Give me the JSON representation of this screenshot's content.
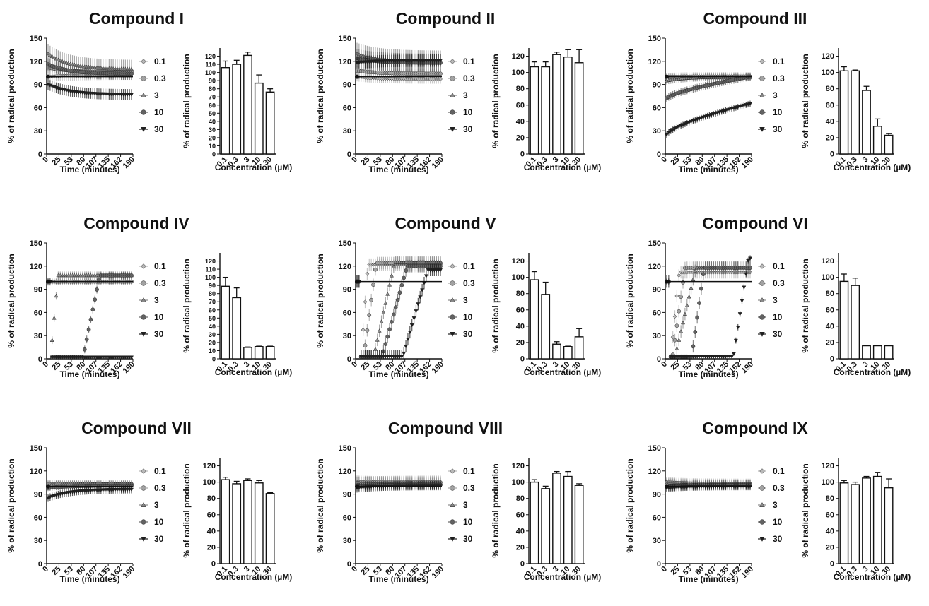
{
  "figure": {
    "time_xlabel": "Time (minutes)",
    "time_ylabel": "% of radical production",
    "bar_xlabel": "Concentration (µM)",
    "bar_ylabel": "% of radical production",
    "series_colors": [
      "#b8b8b8",
      "#a2a2a2",
      "#8a8a8a",
      "#626262",
      "#1e1e1e"
    ],
    "markers": [
      "diamond",
      "circle",
      "triangle",
      "circle",
      "triangle-down"
    ]
  },
  "chart_data": [
    {
      "type": "line",
      "title": "Compound I",
      "x_ticks": [
        "0",
        "25",
        "53",
        "80",
        "107",
        "135",
        "162",
        "190"
      ],
      "y_ticks": [
        "0",
        "30",
        "60",
        "90",
        "120",
        "150"
      ],
      "ylim": [
        0,
        150
      ],
      "legend": [
        "0.1",
        "0.3",
        "3",
        "10",
        "30"
      ],
      "series": [
        {
          "name": "0.1",
          "start": 100,
          "end": 103,
          "err": 7
        },
        {
          "name": "0.3",
          "start": 112,
          "end": 106,
          "err": 8
        },
        {
          "name": "3",
          "start": 130,
          "end": 110,
          "err": 12
        },
        {
          "name": "10",
          "start": 116,
          "end": 104,
          "err": 8
        },
        {
          "name": "30",
          "start": 90,
          "end": 77,
          "err": 7
        }
      ],
      "bar": {
        "type": "bar",
        "categories": [
          "0.1",
          "0.3",
          "3",
          "10",
          "30"
        ],
        "values": [
          106,
          110,
          121,
          87,
          76
        ],
        "errors": [
          8,
          5,
          4,
          10,
          4
        ],
        "y_ticks": [
          "0",
          "10",
          "20",
          "30",
          "40",
          "50",
          "60",
          "70",
          "80",
          "90",
          "100",
          "110",
          "120"
        ],
        "ylim": [
          0,
          130
        ]
      }
    },
    {
      "type": "line",
      "title": "Compound II",
      "x_ticks": [
        "0",
        "25",
        "53",
        "80",
        "107",
        "135",
        "162",
        "190"
      ],
      "y_ticks": [
        "0",
        "30",
        "60",
        "90",
        "120",
        "150"
      ],
      "ylim": [
        0,
        150
      ],
      "legend": [
        "0.1",
        "0.3",
        "3",
        "10",
        "30"
      ],
      "series": [
        {
          "name": "0.1",
          "start": 100,
          "end": 97,
          "err": 6
        },
        {
          "name": "0.3",
          "start": 108,
          "end": 104,
          "err": 6
        },
        {
          "name": "3",
          "start": 130,
          "end": 120,
          "err": 14
        },
        {
          "name": "10",
          "start": 124,
          "end": 118,
          "err": 12
        },
        {
          "name": "30",
          "start": 118,
          "end": 121,
          "err": 8
        }
      ],
      "bar": {
        "type": "bar",
        "categories": [
          "0.1",
          "0.3",
          "3",
          "10",
          "30"
        ],
        "values": [
          107,
          107,
          122,
          119,
          112
        ],
        "errors": [
          6,
          6,
          3,
          9,
          16
        ],
        "y_ticks": [
          "0",
          "20",
          "40",
          "60",
          "80",
          "100",
          "120"
        ],
        "ylim": [
          0,
          130
        ]
      }
    },
    {
      "type": "line",
      "title": "Compound III",
      "x_ticks": [
        "0",
        "25",
        "53",
        "80",
        "107",
        "135",
        "162",
        "190"
      ],
      "y_ticks": [
        "0",
        "30",
        "60",
        "90",
        "120",
        "150"
      ],
      "ylim": [
        0,
        150
      ],
      "legend": [
        "0.1",
        "0.3",
        "3",
        "10",
        "30"
      ],
      "series": [
        {
          "name": "0.1",
          "start": 100,
          "end": 101,
          "err": 5
        },
        {
          "name": "0.3",
          "start": 100,
          "end": 99,
          "err": 4
        },
        {
          "name": "3",
          "start": 95,
          "end": 100,
          "err": 5
        },
        {
          "name": "10",
          "start": 72,
          "end": 100,
          "err": 5
        },
        {
          "name": "30",
          "start": 25,
          "end": 65,
          "err": 4
        }
      ],
      "bar": {
        "type": "bar",
        "categories": [
          "0.1",
          "0.3",
          "3",
          "10",
          "30"
        ],
        "values": [
          102,
          102,
          78,
          34,
          23
        ],
        "errors": [
          5,
          1,
          5,
          9,
          2
        ],
        "y_ticks": [
          "0",
          "20",
          "40",
          "60",
          "80",
          "100",
          "120"
        ],
        "ylim": [
          0,
          130
        ]
      }
    },
    {
      "type": "line",
      "title": "Compound IV",
      "x_ticks": [
        "0",
        "25",
        "53",
        "80",
        "107",
        "135",
        "162",
        "190"
      ],
      "y_ticks": [
        "0",
        "30",
        "60",
        "90",
        "120",
        "150"
      ],
      "ylim": [
        0,
        150
      ],
      "legend": [
        "0.1",
        "0.3",
        "3",
        "10",
        "30"
      ],
      "series": [
        {
          "name": "0.1",
          "start": 100,
          "end": 100,
          "err": 4
        },
        {
          "name": "0.3",
          "start": 100,
          "end": 100,
          "err": 4
        },
        {
          "name": "3",
          "start": 100,
          "end": 108,
          "err": 5
        },
        {
          "name": "10",
          "start": 100,
          "end": 108,
          "err": 5
        },
        {
          "name": "30",
          "start": 100,
          "end": 2,
          "err": 1
        }
      ],
      "bar": {
        "type": "bar",
        "categories": [
          "0.1",
          "0.3",
          "3",
          "10",
          "30"
        ],
        "values": [
          89,
          75,
          14,
          15,
          15
        ],
        "errors": [
          11,
          12,
          0.5,
          0.5,
          0.5
        ],
        "y_ticks": [
          "0",
          "10",
          "20",
          "30",
          "40",
          "50",
          "60",
          "70",
          "80",
          "90",
          "100",
          "110",
          "120"
        ],
        "ylim": [
          0,
          130
        ]
      }
    },
    {
      "type": "line",
      "title": "Compound V",
      "x_ticks": [
        "0",
        "25",
        "53",
        "80",
        "107",
        "135",
        "162",
        "190"
      ],
      "y_ticks": [
        "0",
        "30",
        "60",
        "90",
        "120",
        "150"
      ],
      "ylim": [
        0,
        150
      ],
      "legend": [
        "0.1",
        "0.3",
        "3",
        "10",
        "30"
      ],
      "series": [
        {
          "name": "0.1",
          "start": 100,
          "end": 122,
          "err": 8
        },
        {
          "name": "0.3",
          "start": 100,
          "end": 124,
          "err": 8
        },
        {
          "name": "3",
          "start": 100,
          "end": 125,
          "err": 8
        },
        {
          "name": "10",
          "start": 100,
          "end": 120,
          "err": 8
        },
        {
          "name": "30",
          "start": 100,
          "end": 115,
          "err": 8
        }
      ],
      "bar": {
        "type": "bar",
        "categories": [
          "0.1",
          "0.3",
          "3",
          "10",
          "30"
        ],
        "values": [
          97,
          79,
          18,
          15,
          27
        ],
        "errors": [
          10,
          15,
          3,
          0.5,
          10
        ],
        "y_ticks": [
          "0",
          "20",
          "40",
          "60",
          "80",
          "100",
          "120"
        ],
        "ylim": [
          0,
          130
        ]
      }
    },
    {
      "type": "line",
      "title": "Compound VI",
      "x_ticks": [
        "0",
        "25",
        "53",
        "80",
        "107",
        "135",
        "162",
        "190"
      ],
      "y_ticks": [
        "0",
        "30",
        "60",
        "90",
        "120",
        "150"
      ],
      "ylim": [
        0,
        150
      ],
      "legend": [
        "0.1",
        "0.3",
        "3",
        "10",
        "30"
      ],
      "series": [
        {
          "name": "0.1",
          "start": 100,
          "end": 112,
          "err": 8
        },
        {
          "name": "0.3",
          "start": 100,
          "end": 118,
          "err": 8
        },
        {
          "name": "3",
          "start": 100,
          "end": 118,
          "err": 8
        },
        {
          "name": "10",
          "start": 100,
          "end": 118,
          "err": 8
        },
        {
          "name": "30",
          "start": 100,
          "end": 130,
          "err": 4
        }
      ],
      "bar": {
        "type": "bar",
        "categories": [
          "0.1",
          "0.3",
          "3",
          "10",
          "30"
        ],
        "values": [
          95,
          90,
          16,
          16,
          16
        ],
        "errors": [
          9,
          9,
          0.5,
          0.5,
          0.5
        ],
        "y_ticks": [
          "0",
          "20",
          "40",
          "60",
          "80",
          "100",
          "120"
        ],
        "ylim": [
          0,
          130
        ]
      }
    },
    {
      "type": "line",
      "title": "Compound VII",
      "x_ticks": [
        "0",
        "25",
        "53",
        "80",
        "107",
        "135",
        "162",
        "190"
      ],
      "y_ticks": [
        "0",
        "30",
        "60",
        "90",
        "120",
        "150"
      ],
      "ylim": [
        0,
        150
      ],
      "legend": [
        "0.1",
        "0.3",
        "3",
        "10",
        "30"
      ],
      "series": [
        {
          "name": "0.1",
          "start": 101,
          "end": 102,
          "err": 3
        },
        {
          "name": "0.3",
          "start": 102,
          "end": 103,
          "err": 3
        },
        {
          "name": "3",
          "start": 104,
          "end": 104,
          "err": 4
        },
        {
          "name": "10",
          "start": 98,
          "end": 101,
          "err": 4
        },
        {
          "name": "30",
          "start": 85,
          "end": 96,
          "err": 5
        }
      ],
      "bar": {
        "type": "bar",
        "categories": [
          "0.1",
          "0.3",
          "3",
          "10",
          "30"
        ],
        "values": [
          103,
          98,
          102,
          99,
          86
        ],
        "errors": [
          3,
          3,
          2,
          3,
          1
        ],
        "y_ticks": [
          "0",
          "20",
          "40",
          "60",
          "80",
          "100",
          "120"
        ],
        "ylim": [
          0,
          130
        ]
      }
    },
    {
      "type": "line",
      "title": "Compound VIII",
      "x_ticks": [
        "0",
        "25",
        "53",
        "80",
        "107",
        "135",
        "162",
        "190"
      ],
      "y_ticks": [
        "0",
        "30",
        "60",
        "90",
        "120",
        "150"
      ],
      "ylim": [
        0,
        150
      ],
      "legend": [
        "0.1",
        "0.3",
        "3",
        "10",
        "30"
      ],
      "series": [
        {
          "name": "0.1",
          "start": 104,
          "end": 106,
          "err": 8
        },
        {
          "name": "0.3",
          "start": 106,
          "end": 105,
          "err": 8
        },
        {
          "name": "3",
          "start": 105,
          "end": 104,
          "err": 7
        },
        {
          "name": "10",
          "start": 100,
          "end": 102,
          "err": 6
        },
        {
          "name": "30",
          "start": 98,
          "end": 101,
          "err": 6
        }
      ],
      "bar": {
        "type": "bar",
        "categories": [
          "0.1",
          "0.3",
          "3",
          "10",
          "30"
        ],
        "values": [
          100,
          92,
          111,
          107,
          96
        ],
        "errors": [
          3,
          3,
          2,
          6,
          2
        ],
        "y_ticks": [
          "0",
          "20",
          "40",
          "60",
          "80",
          "100",
          "120"
        ],
        "ylim": [
          0,
          130
        ]
      }
    },
    {
      "type": "line",
      "title": "Compound IX",
      "x_ticks": [
        "0",
        "25",
        "53",
        "80",
        "107",
        "135",
        "162",
        "190"
      ],
      "y_ticks": [
        "0",
        "30",
        "60",
        "90",
        "120",
        "150"
      ],
      "ylim": [
        0,
        150
      ],
      "legend": [
        "0.1",
        "0.3",
        "3",
        "10",
        "30"
      ],
      "series": [
        {
          "name": "0.1",
          "start": 106,
          "end": 104,
          "err": 6
        },
        {
          "name": "0.3",
          "start": 105,
          "end": 103,
          "err": 6
        },
        {
          "name": "3",
          "start": 104,
          "end": 102,
          "err": 6
        },
        {
          "name": "10",
          "start": 100,
          "end": 102,
          "err": 6
        },
        {
          "name": "30",
          "start": 98,
          "end": 100,
          "err": 5
        }
      ],
      "bar": {
        "type": "bar",
        "categories": [
          "0.1",
          "0.3",
          "3",
          "10",
          "30"
        ],
        "values": [
          99,
          97,
          105,
          107,
          93
        ],
        "errors": [
          3,
          3,
          2,
          5,
          11
        ],
        "y_ticks": [
          "0",
          "20",
          "40",
          "60",
          "80",
          "100",
          "120"
        ],
        "ylim": [
          0,
          130
        ]
      }
    }
  ]
}
